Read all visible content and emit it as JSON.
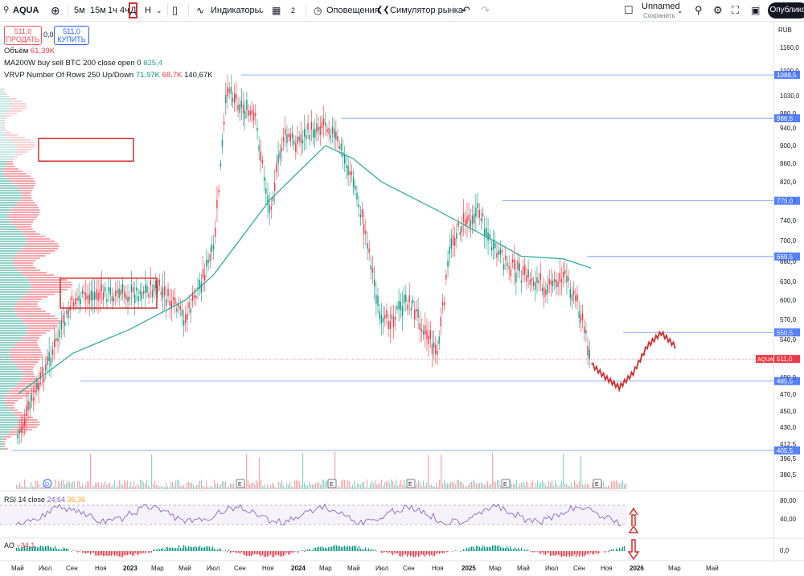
{
  "toolbar": {
    "symbol": "AQUA",
    "intervals": [
      "5м",
      "15м",
      "1ч",
      "4ч",
      "Д",
      "Н"
    ],
    "active_interval": "Д",
    "indicators_label": "Индикаторы",
    "layouts_count": "2",
    "alerts_label": "Оповещения",
    "replay_label": "Симулятор рынка",
    "layout_name": "Unnamed",
    "save_label": "Сохранить",
    "publish_label": "Опублико"
  },
  "trade": {
    "sell_price": "511,0",
    "sell_label": "ПРОДАТЬ",
    "spread": "0,0",
    "buy_price": "511,0",
    "buy_label": "КУПИТЬ"
  },
  "legends": {
    "volume_label": "Объём",
    "volume_value": "61,39K",
    "ma_label": "MA200W buy sell BTC 200 close open 0",
    "ma_value": "625,4",
    "vrvp_label": "VRVP Number Of Rows 250 Up/Down",
    "vrvp_up": "71,97K",
    "vrvp_down": "68,7K",
    "vrvp_total": "140,67K",
    "rsi_label": "RSI 14 close",
    "rsi_value": "24,64",
    "rsi_ma": "36,36",
    "ao_label": "AO",
    "ao_value": "−34,1"
  },
  "colors": {
    "up": "#089981",
    "down": "#f23645",
    "ma": "#22ab94",
    "level": "#2962ff",
    "annotation": "#d32f2f",
    "rsi": "#7e57c2"
  },
  "chart_data": {
    "type": "candlestick",
    "symbol": "AQUA",
    "currency": "RUB",
    "y_ticks": [
      "1160,0",
      "1100,0",
      "1030,0",
      "980,0",
      "940,0",
      "900,0",
      "860,0",
      "820,0",
      "780,0",
      "740,0",
      "700,0",
      "660,0",
      "630,0",
      "600,0",
      "570,0",
      "540,0",
      "510,0",
      "490,0",
      "470,0",
      "450,0",
      "430,0",
      "412,5",
      "396,5",
      "380,5"
    ],
    "x_ticks": [
      "Май",
      "Июл",
      "Сен",
      "Ноя",
      "2023",
      "Мар",
      "Май",
      "Июл",
      "Сен",
      "Ноя",
      "2024",
      "Мар",
      "Май",
      "Июл",
      "Сен",
      "Ноя",
      "2025",
      "Мар",
      "Май",
      "Июл",
      "Сен",
      "Ноя",
      "2026",
      "Мар",
      "Май"
    ],
    "levels": [
      {
        "value": 1088.5,
        "label": "1088,5"
      },
      {
        "value": 966.5,
        "label": "966,5"
      },
      {
        "value": 779.0,
        "label": "779,0"
      },
      {
        "value": 669.5,
        "label": "669,5"
      },
      {
        "value": 550.5,
        "label": "550,5"
      },
      {
        "value": 485.5,
        "label": "485,5"
      },
      {
        "value": 405.5,
        "label": "405,5"
      }
    ],
    "last_price": {
      "value": 511.0,
      "label": "511,0",
      "tag": "AQUA"
    },
    "price_path": [
      [
        "Май 2022",
        420
      ],
      [
        "Июл 2022",
        500
      ],
      [
        "Сен 2022",
        600
      ],
      [
        "Ноя 2022",
        610
      ],
      [
        "2023",
        610
      ],
      [
        "Мар 2023",
        620
      ],
      [
        "Май 2023",
        570
      ],
      [
        "Июл 2023",
        680
      ],
      [
        "Авг 2023",
        1060
      ],
      [
        "Сен 2023",
        1000
      ],
      [
        "Окт 2023",
        960
      ],
      [
        "Ноя 2023",
        760
      ],
      [
        "Дек 2023",
        920
      ],
      [
        "2024",
        910
      ],
      [
        "Мар 2024",
        960
      ],
      [
        "Апр 2024",
        900
      ],
      [
        "Май 2024",
        820
      ],
      [
        "Июн 2024",
        700
      ],
      [
        "Июл 2024",
        560
      ],
      [
        "Сен 2024",
        600
      ],
      [
        "Ноя 2024",
        520
      ],
      [
        "Дек 2024",
        700
      ],
      [
        "2025",
        740
      ],
      [
        "Фев 2025",
        760
      ],
      [
        "Мар 2025",
        680
      ],
      [
        "Май 2025",
        640
      ],
      [
        "Июл 2025",
        620
      ],
      [
        "Авг 2025",
        640
      ],
      [
        "Сен 2025",
        600
      ],
      [
        "Окт 2025",
        511
      ]
    ],
    "ma_path": [
      [
        "Май 2022",
        470
      ],
      [
        "Сен 2022",
        520
      ],
      [
        "2023",
        555
      ],
      [
        "Май 2023",
        600
      ],
      [
        "Июл 2023",
        640
      ],
      [
        "Ноя 2023",
        780
      ],
      [
        "Мар 2024",
        900
      ],
      [
        "Май 2024",
        870
      ],
      [
        "Июл 2024",
        820
      ],
      [
        "Ноя 2024",
        760
      ],
      [
        "Мар 2025",
        700
      ],
      [
        "Май 2025",
        670
      ],
      [
        "Авг 2025",
        665
      ],
      [
        "Окт 2025",
        650
      ]
    ],
    "forecast_path": [
      [
        "Окт 2025",
        505
      ],
      [
        "Ноя 2025",
        490
      ],
      [
        "Дек 2025",
        478
      ],
      [
        "2026",
        495
      ],
      [
        "Фев 2026",
        530
      ],
      [
        "Мар 2026",
        550
      ],
      [
        "Апр 2026",
        530
      ]
    ],
    "annotation_boxes": [
      {
        "kind": "volume-profile-node",
        "range": [
          885,
          905
        ]
      },
      {
        "kind": "consolidation",
        "range": [
          590,
          635
        ]
      }
    ],
    "rsi": {
      "upper": "80,00",
      "lower": "40,00"
    },
    "ao": {
      "zero": "0,0"
    }
  }
}
